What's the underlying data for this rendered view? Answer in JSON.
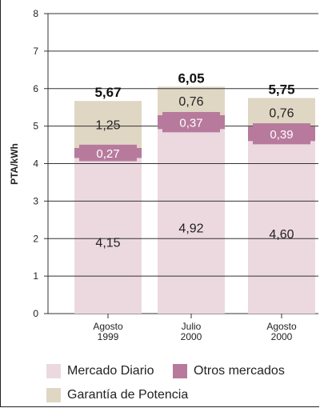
{
  "chart_data": {
    "type": "bar",
    "stacked": true,
    "ylabel": "PTA/kWh",
    "ylim": [
      0,
      8
    ],
    "yticks": [
      0,
      1,
      2,
      3,
      4,
      5,
      6,
      7,
      8
    ],
    "grid": true,
    "categories": [
      {
        "line1": "Agosto",
        "line2": "1999"
      },
      {
        "line1": "Julio",
        "line2": "2000"
      },
      {
        "line1": "Agosto",
        "line2": "2000"
      }
    ],
    "series": [
      {
        "name": "Mercado Diario",
        "color": "#ecd9e0",
        "values": [
          4.15,
          4.92,
          4.6
        ],
        "labels": [
          "4,15",
          "4,92",
          "4,60"
        ]
      },
      {
        "name": "Otros mercados",
        "color": "#b77a9c",
        "values": [
          0.27,
          0.37,
          0.39
        ],
        "labels": [
          "0,27",
          "0,37",
          "0,39"
        ]
      },
      {
        "name": "Garantía de Potencia",
        "color": "#e0d6c4",
        "values": [
          1.25,
          0.76,
          0.76
        ],
        "labels": [
          "1,25",
          "0,76",
          "0,76"
        ]
      }
    ],
    "totals": [
      "5,67",
      "6,05",
      "5,75"
    ],
    "legend_position": "bottom"
  }
}
